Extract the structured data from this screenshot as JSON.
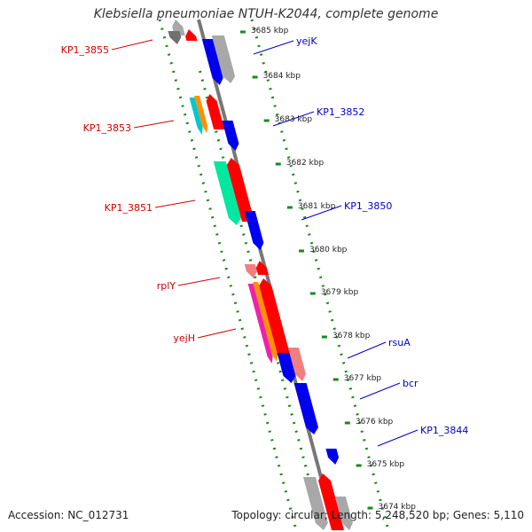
{
  "title": "Klebsiella pneumoniae NTUH-K2044, complete genome",
  "accession": "Accession: NC_012731",
  "topology": "Topology: circular; Length: 5,248,520 bp; Genes: 5,110",
  "colors": {
    "backbone": "#777777",
    "ticks": "#1a8a1a",
    "forward_label": "#d40000",
    "reverse_label": "#0000c8",
    "red": "#ff0000",
    "blue": "#0000ee",
    "pink": "#f08080",
    "orange": "#ff9000",
    "cyan": "#00c8d0",
    "spring": "#00e8a0",
    "magenta": "#ee22aa",
    "grey": "#a8a8a8",
    "dark_grey": "#707070"
  },
  "kbp_labels": [
    "3685 kbp",
    "3684 kbp",
    "3683 kbp",
    "3682 kbp",
    "3681 kbp",
    "3680 kbp",
    "3679 kbp",
    "3678 kbp",
    "3677 kbp",
    "3676 kbp",
    "3675 kbp",
    "3674 kbp"
  ],
  "left_labels": [
    "KP1_3855",
    "KP1_3853",
    "KP1_3851",
    "rplY",
    "yejH"
  ],
  "right_labels": [
    "yejK",
    "KP1_3852",
    "KP1_3850",
    "rsuA",
    "bcr",
    "KP1_3844"
  ]
}
